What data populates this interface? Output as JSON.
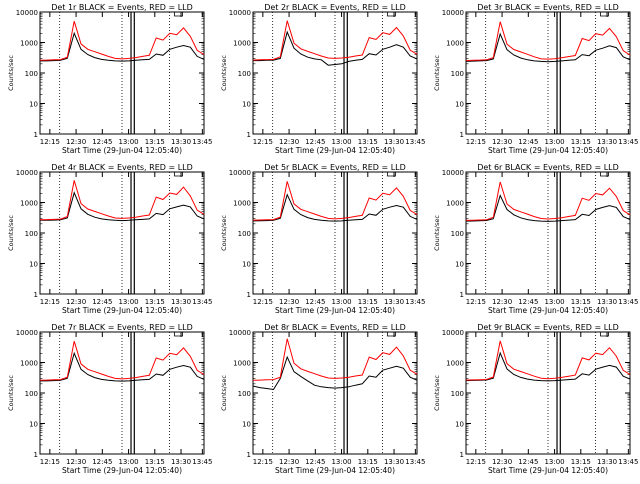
{
  "chart_data": [
    {
      "type": "line",
      "detector": "1r",
      "title": "Det 1r BLACK = Events, RED = LLD",
      "xlabel": "Start Time (29-Jun-04 12:05:40)",
      "ylabel": "Counts/sec",
      "y_scale": "log",
      "ylim": [
        1,
        10000
      ],
      "x_tick_labels": [
        "12:15",
        "12:30",
        "12:45",
        "13:00",
        "13:15",
        "13:30",
        "13:45"
      ],
      "y_tick_labels": [
        "1",
        "10",
        "100",
        "1000",
        "10000"
      ],
      "series": [
        {
          "name": "BLACK = Events",
          "color": "#000000",
          "values": [
            250,
            250,
            255,
            260,
            300,
            2000,
            600,
            400,
            320,
            280,
            260,
            250,
            245,
            250,
            260,
            270,
            280,
            420,
            380,
            600,
            700,
            800,
            700,
            350,
            280
          ]
        },
        {
          "name": "RED = LLD",
          "color": "#ff0000",
          "values": [
            260,
            265,
            270,
            275,
            330,
            5000,
            900,
            600,
            500,
            420,
            350,
            300,
            290,
            300,
            320,
            350,
            380,
            1400,
            1200,
            2000,
            1800,
            3000,
            1600,
            550,
            400
          ]
        }
      ]
    },
    {
      "type": "line",
      "detector": "2r",
      "title": "Det 2r BLACK = Events, RED = LLD",
      "xlabel": "Start Time (29-Jun-04 12:05:40)",
      "ylabel": "Counts/sec",
      "y_scale": "log",
      "ylim": [
        1,
        10000
      ],
      "x_tick_labels": [
        "12:15",
        "12:30",
        "12:45",
        "13:00",
        "13:15",
        "13:30",
        "13:45"
      ],
      "y_tick_labels": [
        "1",
        "10",
        "100",
        "1000",
        "10000"
      ],
      "series": [
        {
          "name": "BLACK = Events",
          "color": "#000000",
          "values": [
            255,
            255,
            260,
            265,
            300,
            2200,
            650,
            420,
            330,
            290,
            270,
            180,
            190,
            200,
            240,
            260,
            280,
            430,
            390,
            600,
            700,
            850,
            700,
            360,
            290
          ]
        },
        {
          "name": "RED = LLD",
          "color": "#ff0000",
          "values": [
            265,
            270,
            275,
            280,
            340,
            5200,
            950,
            620,
            510,
            430,
            360,
            310,
            300,
            310,
            330,
            360,
            390,
            1450,
            1250,
            2100,
            1850,
            3100,
            1650,
            560,
            410
          ]
        }
      ]
    },
    {
      "type": "line",
      "detector": "3r",
      "title": "Det 3r BLACK = Events, RED = LLD",
      "xlabel": "Start Time (29-Jun-04 12:05:40)",
      "ylabel": "Counts/sec",
      "y_scale": "log",
      "ylim": [
        1,
        10000
      ],
      "x_tick_labels": [
        "12:15",
        "12:30",
        "12:45",
        "13:00",
        "13:15",
        "13:30",
        "13:45"
      ],
      "y_tick_labels": [
        "1",
        "10",
        "100",
        "1000",
        "10000"
      ],
      "series": [
        {
          "name": "BLACK = Events",
          "color": "#000000",
          "values": [
            240,
            245,
            250,
            255,
            290,
            1900,
            580,
            390,
            310,
            270,
            250,
            240,
            235,
            240,
            250,
            260,
            270,
            400,
            370,
            560,
            650,
            780,
            680,
            340,
            270
          ]
        },
        {
          "name": "RED = LLD",
          "color": "#ff0000",
          "values": [
            255,
            260,
            265,
            270,
            320,
            4800,
            880,
            590,
            490,
            410,
            340,
            290,
            285,
            295,
            315,
            345,
            375,
            1350,
            1150,
            1950,
            1750,
            2900,
            1550,
            540,
            390
          ]
        }
      ]
    },
    {
      "type": "line",
      "detector": "4r",
      "title": "Det 4r BLACK = Events, RED = LLD",
      "xlabel": "Start Time (29-Jun-04 12:05:40)",
      "ylabel": "Counts/sec",
      "y_scale": "log",
      "ylim": [
        1,
        10000
      ],
      "x_tick_labels": [
        "12:15",
        "12:30",
        "12:45",
        "13:00",
        "13:15",
        "13:30",
        "13:45"
      ],
      "y_tick_labels": [
        "1",
        "10",
        "100",
        "1000",
        "10000"
      ],
      "series": [
        {
          "name": "BLACK = Events",
          "color": "#000000",
          "values": [
            260,
            262,
            265,
            270,
            310,
            2100,
            620,
            410,
            330,
            290,
            270,
            260,
            255,
            260,
            270,
            280,
            290,
            440,
            400,
            620,
            720,
            820,
            720,
            360,
            290
          ]
        },
        {
          "name": "RED = LLD",
          "color": "#ff0000",
          "values": [
            270,
            275,
            280,
            285,
            345,
            5300,
            920,
            610,
            510,
            430,
            360,
            310,
            300,
            310,
            330,
            360,
            390,
            1500,
            1250,
            2050,
            1850,
            3200,
            1650,
            560,
            410
          ]
        }
      ]
    },
    {
      "type": "line",
      "detector": "5r",
      "title": "Det 5r BLACK = Events, RED = LLD",
      "xlabel": "Start Time (29-Jun-04 12:05:40)",
      "ylabel": "Counts/sec",
      "y_scale": "log",
      "ylim": [
        1,
        10000
      ],
      "x_tick_labels": [
        "12:15",
        "12:30",
        "12:45",
        "13:00",
        "13:15",
        "13:30",
        "13:45"
      ],
      "y_tick_labels": [
        "1",
        "10",
        "100",
        "1000",
        "10000"
      ],
      "series": [
        {
          "name": "BLACK = Events",
          "color": "#000000",
          "values": [
            250,
            252,
            255,
            260,
            300,
            1800,
            600,
            400,
            320,
            280,
            260,
            250,
            245,
            250,
            260,
            270,
            280,
            420,
            380,
            600,
            700,
            800,
            700,
            350,
            280
          ]
        },
        {
          "name": "RED = LLD",
          "color": "#ff0000",
          "values": [
            262,
            266,
            270,
            276,
            332,
            4900,
            900,
            600,
            500,
            420,
            350,
            300,
            290,
            300,
            320,
            350,
            380,
            1400,
            1200,
            2000,
            1800,
            3000,
            1600,
            550,
            400
          ]
        }
      ]
    },
    {
      "type": "line",
      "detector": "6r",
      "title": "Det 6r BLACK = Events, RED = LLD",
      "xlabel": "Start Time (29-Jun-04 12:05:40)",
      "ylabel": "Counts/sec",
      "y_scale": "log",
      "ylim": [
        1,
        10000
      ],
      "x_tick_labels": [
        "12:15",
        "12:30",
        "12:45",
        "13:00",
        "13:15",
        "13:30",
        "13:45"
      ],
      "y_tick_labels": [
        "1",
        "10",
        "100",
        "1000",
        "10000"
      ],
      "series": [
        {
          "name": "BLACK = Events",
          "color": "#000000",
          "values": [
            245,
            248,
            252,
            256,
            295,
            1700,
            590,
            395,
            315,
            275,
            255,
            245,
            240,
            245,
            255,
            265,
            275,
            410,
            375,
            590,
            690,
            790,
            690,
            345,
            275
          ]
        },
        {
          "name": "RED = LLD",
          "color": "#ff0000",
          "values": [
            258,
            262,
            266,
            272,
            328,
            4700,
            890,
            595,
            495,
            415,
            345,
            298,
            288,
            298,
            318,
            348,
            378,
            1380,
            1180,
            1980,
            1780,
            2950,
            1580,
            545,
            395
          ]
        }
      ]
    },
    {
      "type": "line",
      "detector": "7r",
      "title": "Det 7r BLACK = Events, RED = LLD",
      "xlabel": "Start Time (29-Jun-04 12:05:40)",
      "ylabel": "Counts/sec",
      "y_scale": "log",
      "ylim": [
        1,
        10000
      ],
      "x_tick_labels": [
        "12:15",
        "12:30",
        "12:45",
        "13:00",
        "13:15",
        "13:30",
        "13:45"
      ],
      "y_tick_labels": [
        "1",
        "10",
        "100",
        "1000",
        "10000"
      ],
      "series": [
        {
          "name": "BLACK = Events",
          "color": "#000000",
          "values": [
            250,
            250,
            255,
            260,
            300,
            2000,
            600,
            400,
            320,
            280,
            260,
            250,
            245,
            250,
            260,
            270,
            280,
            420,
            380,
            600,
            700,
            800,
            700,
            350,
            280
          ]
        },
        {
          "name": "RED = LLD",
          "color": "#ff0000",
          "values": [
            260,
            265,
            270,
            275,
            330,
            5000,
            900,
            600,
            500,
            420,
            350,
            300,
            290,
            300,
            320,
            350,
            380,
            1400,
            1200,
            2000,
            1800,
            3000,
            1600,
            550,
            400
          ]
        }
      ]
    },
    {
      "type": "line",
      "detector": "8r",
      "title": "Det 8r BLACK = Events, RED = LLD",
      "xlabel": "Start Time (29-Jun-04 12:05:40)",
      "ylabel": "Counts/sec",
      "y_scale": "log",
      "ylim": [
        1,
        10000
      ],
      "x_tick_labels": [
        "12:15",
        "12:30",
        "12:45",
        "13:00",
        "13:15",
        "13:30",
        "13:45"
      ],
      "y_tick_labels": [
        "1",
        "10",
        "100",
        "1000",
        "10000"
      ],
      "series": [
        {
          "name": "BLACK = Events",
          "color": "#000000",
          "values": [
            170,
            150,
            140,
            130,
            300,
            1500,
            500,
            350,
            250,
            180,
            160,
            150,
            145,
            150,
            160,
            180,
            200,
            360,
            330,
            560,
            650,
            750,
            650,
            330,
            260
          ]
        },
        {
          "name": "RED = LLD",
          "color": "#ff0000",
          "values": [
            260,
            265,
            270,
            275,
            330,
            6000,
            950,
            620,
            510,
            430,
            360,
            310,
            300,
            310,
            330,
            360,
            390,
            1500,
            1250,
            2100,
            1850,
            3200,
            1650,
            560,
            410
          ]
        }
      ]
    },
    {
      "type": "line",
      "detector": "9r",
      "title": "Det 9r BLACK = Events, RED = LLD",
      "xlabel": "Start Time (29-Jun-04 12:05:40)",
      "ylabel": "Counts/sec",
      "y_scale": "log",
      "ylim": [
        1,
        10000
      ],
      "x_tick_labels": [
        "12:15",
        "12:30",
        "12:45",
        "13:00",
        "13:15",
        "13:30",
        "13:45"
      ],
      "y_tick_labels": [
        "1",
        "10",
        "100",
        "1000",
        "10000"
      ],
      "series": [
        {
          "name": "BLACK = Events",
          "color": "#000000",
          "values": [
            255,
            258,
            262,
            266,
            305,
            2050,
            610,
            405,
            325,
            285,
            265,
            255,
            250,
            255,
            265,
            275,
            285,
            425,
            385,
            605,
            705,
            805,
            705,
            355,
            285
          ]
        },
        {
          "name": "RED = LLD",
          "color": "#ff0000",
          "values": [
            265,
            268,
            272,
            278,
            335,
            5100,
            910,
            605,
            505,
            425,
            355,
            305,
            295,
            305,
            325,
            355,
            385,
            1420,
            1220,
            2020,
            1820,
            3050,
            1620,
            555,
            405
          ]
        }
      ]
    }
  ]
}
